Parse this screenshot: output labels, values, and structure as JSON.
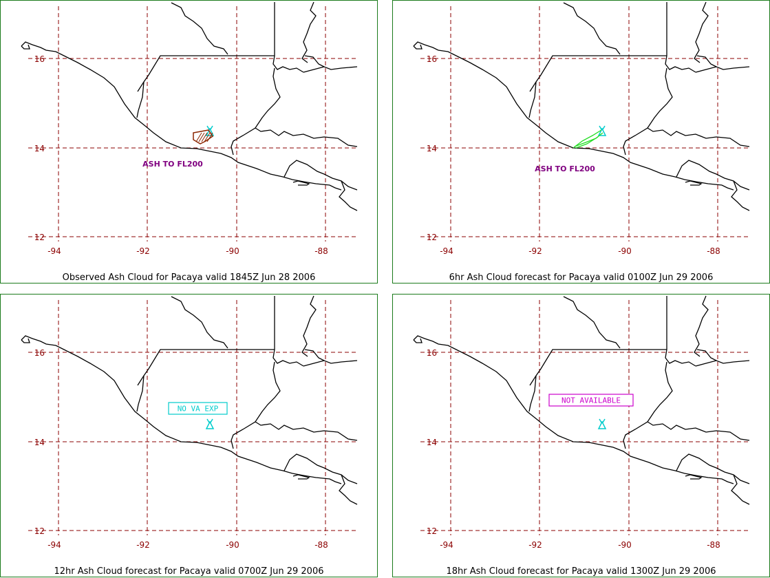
{
  "colors": {
    "frame": "#1a7a1a",
    "grid": "#8b0000",
    "coast": "#000000",
    "volcano": "#00cccc",
    "ash_observed": "#8b2500",
    "ash_6hr": "#22dd22",
    "annotation": "#800080",
    "status_no_va": "#00cccc",
    "status_na": "#cc00cc"
  },
  "icons": {
    "volcano": "volcano-icon"
  },
  "axes": {
    "lat_labels": [
      "16",
      "14",
      "12"
    ],
    "lon_labels": [
      "-94",
      "-92",
      "-90",
      "-88"
    ]
  },
  "panels": [
    {
      "caption": "Observed Ash Cloud for Pacaya valid 1845Z Jun 28 2006",
      "ash_label": "ASH TO FL200",
      "status_box": "",
      "ash_type": "observed"
    },
    {
      "caption": "6hr Ash Cloud forecast for Pacaya valid 0100Z Jun 29 2006",
      "ash_label": "ASH TO FL200",
      "status_box": "",
      "ash_type": "forecast6"
    },
    {
      "caption": "12hr Ash Cloud forecast for Pacaya valid 0700Z Jun 29 2006",
      "ash_label": "",
      "status_box": "NO VA EXP",
      "ash_type": "none"
    },
    {
      "caption": "18hr Ash Cloud forecast for Pacaya valid 1300Z Jun 29 2006",
      "ash_label": "",
      "status_box": "NOT AVAILABLE",
      "ash_type": "na"
    }
  ]
}
